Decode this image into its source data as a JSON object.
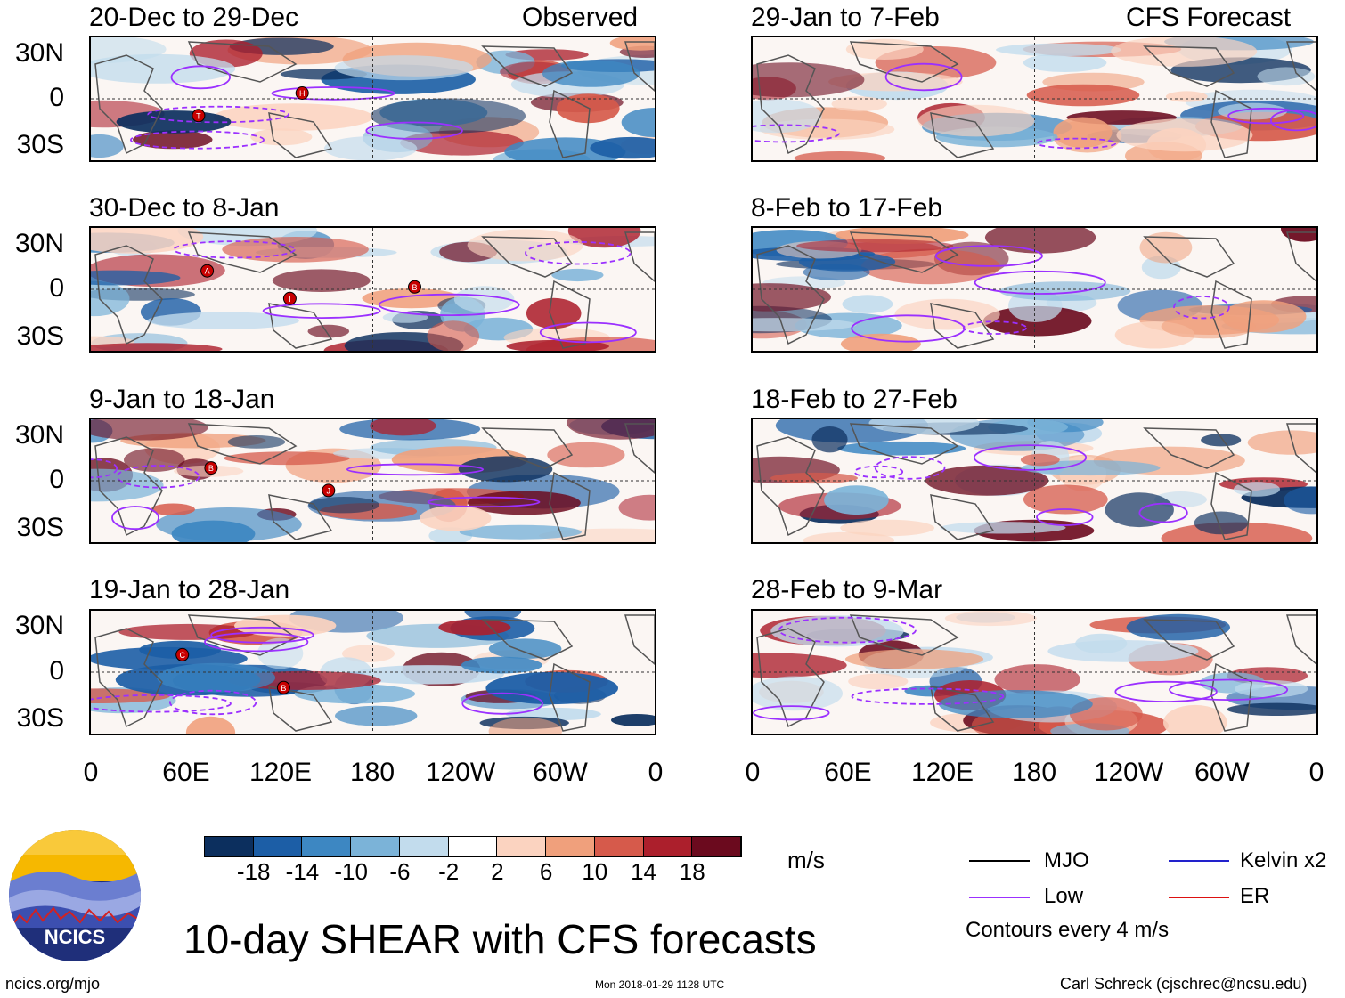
{
  "left_column": {
    "header": "Observed",
    "panels": [
      {
        "title": "20-Dec to 29-Dec",
        "storms": [
          "T",
          "H"
        ]
      },
      {
        "title": "30-Dec to 8-Jan",
        "storms": [
          "A",
          "I",
          "B"
        ]
      },
      {
        "title": "9-Jan to 18-Jan",
        "storms": [
          "B",
          "J"
        ]
      },
      {
        "title": "19-Jan to 28-Jan",
        "storms": [
          "C",
          "B"
        ]
      }
    ]
  },
  "right_column": {
    "header": "CFS Forecast",
    "panels": [
      {
        "title": "29-Jan to 7-Feb"
      },
      {
        "title": "8-Feb to 17-Feb"
      },
      {
        "title": "18-Feb to 27-Feb"
      },
      {
        "title": "28-Feb to 9-Mar"
      }
    ]
  },
  "y_axis": [
    "30N",
    "0",
    "30S"
  ],
  "x_axis": [
    "0",
    "60E",
    "120E",
    "180",
    "120W",
    "60W",
    "0"
  ],
  "colorbar": {
    "labels": [
      "-18",
      "-14",
      "-10",
      "-6",
      "-2",
      "2",
      "6",
      "10",
      "14",
      "18"
    ],
    "colors": [
      "#0c2f5e",
      "#1c5ea6",
      "#3d87c2",
      "#7bb3d8",
      "#c2dced",
      "#ffffff",
      "#fbd3c0",
      "#f0a07c",
      "#d65a4b",
      "#ac1f2c",
      "#6b0a1e"
    ],
    "unit": "m/s"
  },
  "legend": {
    "items": [
      {
        "label": "MJO",
        "color": "#000000"
      },
      {
        "label": "Kelvin x2",
        "color": "#2222cc"
      },
      {
        "label": "Low",
        "color": "#9b30ff"
      },
      {
        "label": "ER",
        "color": "#dd1111"
      }
    ],
    "note": "Contours every 4 m/s"
  },
  "logo_text": "NCICS",
  "main_title": "10-day SHEAR with CFS forecasts",
  "footer": {
    "url": "ncics.org/mjo",
    "timestamp": "Mon 2018-01-29 1128 UTC",
    "author": "Carl Schreck (cjschrec@ncsu.edu)"
  }
}
